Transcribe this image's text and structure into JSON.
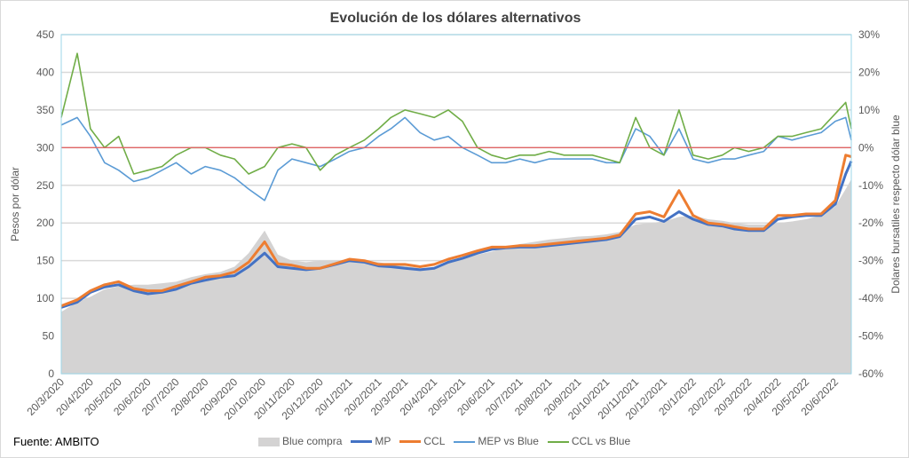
{
  "chart_data": {
    "type": "line",
    "title": "Evolución de los dólares alternativos",
    "ylabel": "Pesos por dólar",
    "y2label": "Dolares bursatiles respecto dólar blue",
    "ylim": [
      0,
      450
    ],
    "yticks": [
      0,
      50,
      100,
      150,
      200,
      250,
      300,
      350,
      400,
      450
    ],
    "y2lim": [
      -60,
      30
    ],
    "y2ticks": [
      "-60%",
      "-50%",
      "-40%",
      "-30%",
      "-20%",
      "-10%",
      "0%",
      "10%",
      "20%",
      "30%"
    ],
    "xticks": [
      "20/3/2020",
      "20/4/2020",
      "20/5/2020",
      "20/6/2020",
      "20/7/2020",
      "20/8/2020",
      "20/9/2020",
      "20/10/2020",
      "20/11/2020",
      "20/12/2020",
      "20/1/2021",
      "20/2/2021",
      "20/3/2021",
      "20/4/2021",
      "20/5/2021",
      "20/6/2021",
      "20/7/2021",
      "20/8/2021",
      "20/9/2021",
      "20/10/2021",
      "20/11/2021",
      "20/12/2021",
      "20/1/2022",
      "20/2/2022",
      "20/3/2022",
      "20/4/2022",
      "20/5/2022",
      "20/6/2022"
    ],
    "grid": true,
    "legend": "bottom",
    "dates": [
      "2020-03-20",
      "2020-04-06",
      "2020-04-20",
      "2020-05-05",
      "2020-05-20",
      "2020-06-05",
      "2020-06-20",
      "2020-07-05",
      "2020-07-20",
      "2020-08-05",
      "2020-08-20",
      "2020-09-05",
      "2020-09-20",
      "2020-10-05",
      "2020-10-22",
      "2020-11-05",
      "2020-11-20",
      "2020-12-05",
      "2020-12-20",
      "2021-01-05",
      "2021-01-20",
      "2021-02-05",
      "2021-02-20",
      "2021-03-05",
      "2021-03-20",
      "2021-04-05",
      "2021-04-20",
      "2021-05-05",
      "2021-05-20",
      "2021-06-05",
      "2021-06-20",
      "2021-07-05",
      "2021-07-20",
      "2021-08-05",
      "2021-08-20",
      "2021-09-05",
      "2021-09-20",
      "2021-10-05",
      "2021-10-20",
      "2021-11-03",
      "2021-11-20",
      "2021-12-05",
      "2021-12-20",
      "2022-01-05",
      "2022-01-20",
      "2022-02-05",
      "2022-02-20",
      "2022-03-05",
      "2022-03-20",
      "2022-04-05",
      "2022-04-20",
      "2022-05-05",
      "2022-05-20",
      "2022-06-05",
      "2022-06-20",
      "2022-07-01",
      "2022-07-07"
    ],
    "series": [
      {
        "name": "Blue compra",
        "type": "area",
        "color": "#d4d3d3",
        "axis": "left",
        "values": [
          82,
          95,
          102,
          112,
          116,
          118,
          118,
          120,
          122,
          128,
          132,
          135,
          142,
          160,
          190,
          158,
          150,
          148,
          150,
          150,
          152,
          150,
          148,
          145,
          143,
          140,
          140,
          148,
          152,
          158,
          162,
          168,
          172,
          175,
          178,
          180,
          182,
          183,
          185,
          188,
          198,
          200,
          202,
          208,
          210,
          205,
          203,
          200,
          198,
          198,
          200,
          202,
          205,
          210,
          222,
          245,
          258
        ]
      },
      {
        "name": "MP",
        "type": "line",
        "color": "#4472c4",
        "axis": "left",
        "values": [
          88,
          95,
          108,
          115,
          118,
          110,
          106,
          108,
          112,
          120,
          124,
          128,
          130,
          142,
          160,
          142,
          140,
          138,
          140,
          145,
          150,
          148,
          143,
          142,
          140,
          138,
          140,
          148,
          153,
          160,
          165,
          167,
          168,
          168,
          170,
          172,
          174,
          176,
          178,
          182,
          205,
          208,
          202,
          215,
          205,
          198,
          196,
          192,
          190,
          190,
          205,
          208,
          210,
          210,
          225,
          265,
          282
        ]
      },
      {
        "name": "CCL",
        "type": "line",
        "color": "#ed7d31",
        "axis": "left",
        "values": [
          90,
          98,
          110,
          118,
          122,
          113,
          110,
          110,
          116,
          122,
          128,
          130,
          135,
          148,
          175,
          146,
          144,
          140,
          140,
          146,
          152,
          150,
          145,
          145,
          145,
          142,
          145,
          152,
          157,
          163,
          168,
          168,
          170,
          170,
          172,
          174,
          176,
          178,
          180,
          184,
          212,
          215,
          208,
          243,
          210,
          200,
          198,
          195,
          192,
          192,
          210,
          210,
          212,
          212,
          230,
          290,
          288
        ]
      },
      {
        "name": "MEP vs Blue",
        "type": "line",
        "color": "#5b9bd5",
        "axis": "right",
        "values": [
          6,
          8,
          3,
          -4,
          -6,
          -9,
          -8,
          -6,
          -4,
          -7,
          -5,
          -6,
          -8,
          -11,
          -14,
          -6,
          -3,
          -4,
          -5,
          -3,
          -1,
          0,
          3,
          5,
          8,
          4,
          2,
          3,
          0,
          -2,
          -4,
          -4,
          -3,
          -4,
          -3,
          -3,
          -3,
          -3,
          -4,
          -4,
          5,
          3,
          -2,
          5,
          -3,
          -4,
          -3,
          -3,
          -2,
          -1,
          3,
          2,
          3,
          4,
          7,
          8,
          2
        ]
      },
      {
        "name": "CCL vs Blue",
        "type": "line",
        "color": "#70ad47",
        "axis": "right",
        "values": [
          8,
          25,
          5,
          0,
          3,
          -7,
          -6,
          -5,
          -2,
          0,
          0,
          -2,
          -3,
          -7,
          -5,
          0,
          1,
          0,
          -6,
          -2,
          0,
          2,
          5,
          8,
          10,
          9,
          8,
          10,
          7,
          0,
          -2,
          -3,
          -2,
          -2,
          -1,
          -2,
          -2,
          -2,
          -3,
          -4,
          8,
          0,
          -2,
          10,
          -2,
          -3,
          -2,
          0,
          -1,
          0,
          3,
          3,
          4,
          5,
          9,
          12,
          5
        ]
      }
    ],
    "reference_line": {
      "axis": "right",
      "value": 0,
      "color": "#e06666"
    }
  },
  "source": "Fuente: AMBITO"
}
